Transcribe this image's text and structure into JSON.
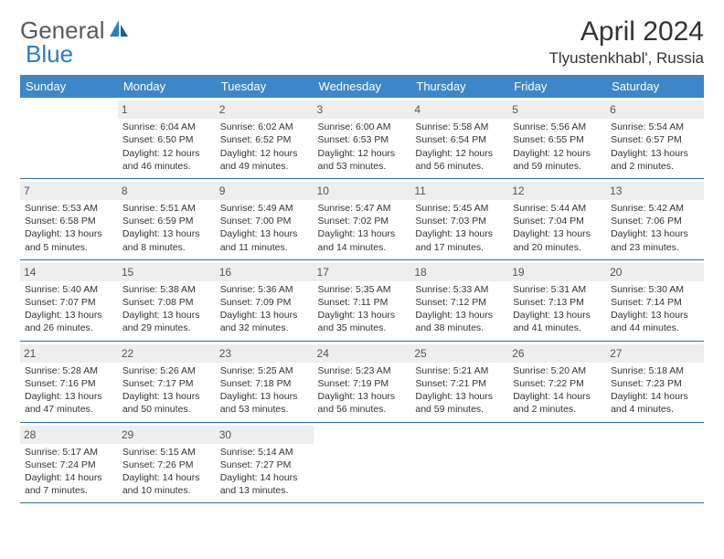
{
  "brand": {
    "part1": "General",
    "part2": "Blue"
  },
  "title": "April 2024",
  "location": "Tlyustenkhabl', Russia",
  "colors": {
    "header_bg": "#3d87c9",
    "header_fg": "#ffffff",
    "daynum_bg": "#eeeeee",
    "border": "#2a6fa8",
    "logo_blue": "#2a7fbf"
  },
  "weekdays": [
    "Sunday",
    "Monday",
    "Tuesday",
    "Wednesday",
    "Thursday",
    "Friday",
    "Saturday"
  ],
  "weeks": [
    [
      null,
      {
        "n": "1",
        "sr": "Sunrise: 6:04 AM",
        "ss": "Sunset: 6:50 PM",
        "d1": "Daylight: 12 hours",
        "d2": "and 46 minutes."
      },
      {
        "n": "2",
        "sr": "Sunrise: 6:02 AM",
        "ss": "Sunset: 6:52 PM",
        "d1": "Daylight: 12 hours",
        "d2": "and 49 minutes."
      },
      {
        "n": "3",
        "sr": "Sunrise: 6:00 AM",
        "ss": "Sunset: 6:53 PM",
        "d1": "Daylight: 12 hours",
        "d2": "and 53 minutes."
      },
      {
        "n": "4",
        "sr": "Sunrise: 5:58 AM",
        "ss": "Sunset: 6:54 PM",
        "d1": "Daylight: 12 hours",
        "d2": "and 56 minutes."
      },
      {
        "n": "5",
        "sr": "Sunrise: 5:56 AM",
        "ss": "Sunset: 6:55 PM",
        "d1": "Daylight: 12 hours",
        "d2": "and 59 minutes."
      },
      {
        "n": "6",
        "sr": "Sunrise: 5:54 AM",
        "ss": "Sunset: 6:57 PM",
        "d1": "Daylight: 13 hours",
        "d2": "and 2 minutes."
      }
    ],
    [
      {
        "n": "7",
        "sr": "Sunrise: 5:53 AM",
        "ss": "Sunset: 6:58 PM",
        "d1": "Daylight: 13 hours",
        "d2": "and 5 minutes."
      },
      {
        "n": "8",
        "sr": "Sunrise: 5:51 AM",
        "ss": "Sunset: 6:59 PM",
        "d1": "Daylight: 13 hours",
        "d2": "and 8 minutes."
      },
      {
        "n": "9",
        "sr": "Sunrise: 5:49 AM",
        "ss": "Sunset: 7:00 PM",
        "d1": "Daylight: 13 hours",
        "d2": "and 11 minutes."
      },
      {
        "n": "10",
        "sr": "Sunrise: 5:47 AM",
        "ss": "Sunset: 7:02 PM",
        "d1": "Daylight: 13 hours",
        "d2": "and 14 minutes."
      },
      {
        "n": "11",
        "sr": "Sunrise: 5:45 AM",
        "ss": "Sunset: 7:03 PM",
        "d1": "Daylight: 13 hours",
        "d2": "and 17 minutes."
      },
      {
        "n": "12",
        "sr": "Sunrise: 5:44 AM",
        "ss": "Sunset: 7:04 PM",
        "d1": "Daylight: 13 hours",
        "d2": "and 20 minutes."
      },
      {
        "n": "13",
        "sr": "Sunrise: 5:42 AM",
        "ss": "Sunset: 7:06 PM",
        "d1": "Daylight: 13 hours",
        "d2": "and 23 minutes."
      }
    ],
    [
      {
        "n": "14",
        "sr": "Sunrise: 5:40 AM",
        "ss": "Sunset: 7:07 PM",
        "d1": "Daylight: 13 hours",
        "d2": "and 26 minutes."
      },
      {
        "n": "15",
        "sr": "Sunrise: 5:38 AM",
        "ss": "Sunset: 7:08 PM",
        "d1": "Daylight: 13 hours",
        "d2": "and 29 minutes."
      },
      {
        "n": "16",
        "sr": "Sunrise: 5:36 AM",
        "ss": "Sunset: 7:09 PM",
        "d1": "Daylight: 13 hours",
        "d2": "and 32 minutes."
      },
      {
        "n": "17",
        "sr": "Sunrise: 5:35 AM",
        "ss": "Sunset: 7:11 PM",
        "d1": "Daylight: 13 hours",
        "d2": "and 35 minutes."
      },
      {
        "n": "18",
        "sr": "Sunrise: 5:33 AM",
        "ss": "Sunset: 7:12 PM",
        "d1": "Daylight: 13 hours",
        "d2": "and 38 minutes."
      },
      {
        "n": "19",
        "sr": "Sunrise: 5:31 AM",
        "ss": "Sunset: 7:13 PM",
        "d1": "Daylight: 13 hours",
        "d2": "and 41 minutes."
      },
      {
        "n": "20",
        "sr": "Sunrise: 5:30 AM",
        "ss": "Sunset: 7:14 PM",
        "d1": "Daylight: 13 hours",
        "d2": "and 44 minutes."
      }
    ],
    [
      {
        "n": "21",
        "sr": "Sunrise: 5:28 AM",
        "ss": "Sunset: 7:16 PM",
        "d1": "Daylight: 13 hours",
        "d2": "and 47 minutes."
      },
      {
        "n": "22",
        "sr": "Sunrise: 5:26 AM",
        "ss": "Sunset: 7:17 PM",
        "d1": "Daylight: 13 hours",
        "d2": "and 50 minutes."
      },
      {
        "n": "23",
        "sr": "Sunrise: 5:25 AM",
        "ss": "Sunset: 7:18 PM",
        "d1": "Daylight: 13 hours",
        "d2": "and 53 minutes."
      },
      {
        "n": "24",
        "sr": "Sunrise: 5:23 AM",
        "ss": "Sunset: 7:19 PM",
        "d1": "Daylight: 13 hours",
        "d2": "and 56 minutes."
      },
      {
        "n": "25",
        "sr": "Sunrise: 5:21 AM",
        "ss": "Sunset: 7:21 PM",
        "d1": "Daylight: 13 hours",
        "d2": "and 59 minutes."
      },
      {
        "n": "26",
        "sr": "Sunrise: 5:20 AM",
        "ss": "Sunset: 7:22 PM",
        "d1": "Daylight: 14 hours",
        "d2": "and 2 minutes."
      },
      {
        "n": "27",
        "sr": "Sunrise: 5:18 AM",
        "ss": "Sunset: 7:23 PM",
        "d1": "Daylight: 14 hours",
        "d2": "and 4 minutes."
      }
    ],
    [
      {
        "n": "28",
        "sr": "Sunrise: 5:17 AM",
        "ss": "Sunset: 7:24 PM",
        "d1": "Daylight: 14 hours",
        "d2": "and 7 minutes."
      },
      {
        "n": "29",
        "sr": "Sunrise: 5:15 AM",
        "ss": "Sunset: 7:26 PM",
        "d1": "Daylight: 14 hours",
        "d2": "and 10 minutes."
      },
      {
        "n": "30",
        "sr": "Sunrise: 5:14 AM",
        "ss": "Sunset: 7:27 PM",
        "d1": "Daylight: 14 hours",
        "d2": "and 13 minutes."
      },
      null,
      null,
      null,
      null
    ]
  ]
}
